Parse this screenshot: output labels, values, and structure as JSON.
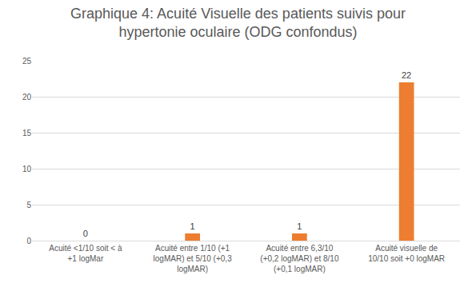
{
  "chart_data": {
    "type": "bar",
    "title": "Graphique 4: Acuité Visuelle des patients suivis pour hypertonie oculaire (ODG confondus)",
    "categories": [
      "Acuité <1/10 soit < à +1 logMar",
      "Acuité entre 1/10 (+1 logMAR) et 5/10 (+0,3 logMAR)",
      "Acuité entre 6,3/10 (+0,2 logMAR) et 8/10 (+0,1 logMAR)",
      "Acuité visuelle de 10/10 soit +0 logMAR"
    ],
    "values": [
      0,
      1,
      1,
      22
    ],
    "color": "#ed7d31",
    "ylim": [
      0,
      25
    ],
    "yticks": [
      0,
      5,
      10,
      15,
      20,
      25
    ],
    "grid": true,
    "data_labels": true
  }
}
